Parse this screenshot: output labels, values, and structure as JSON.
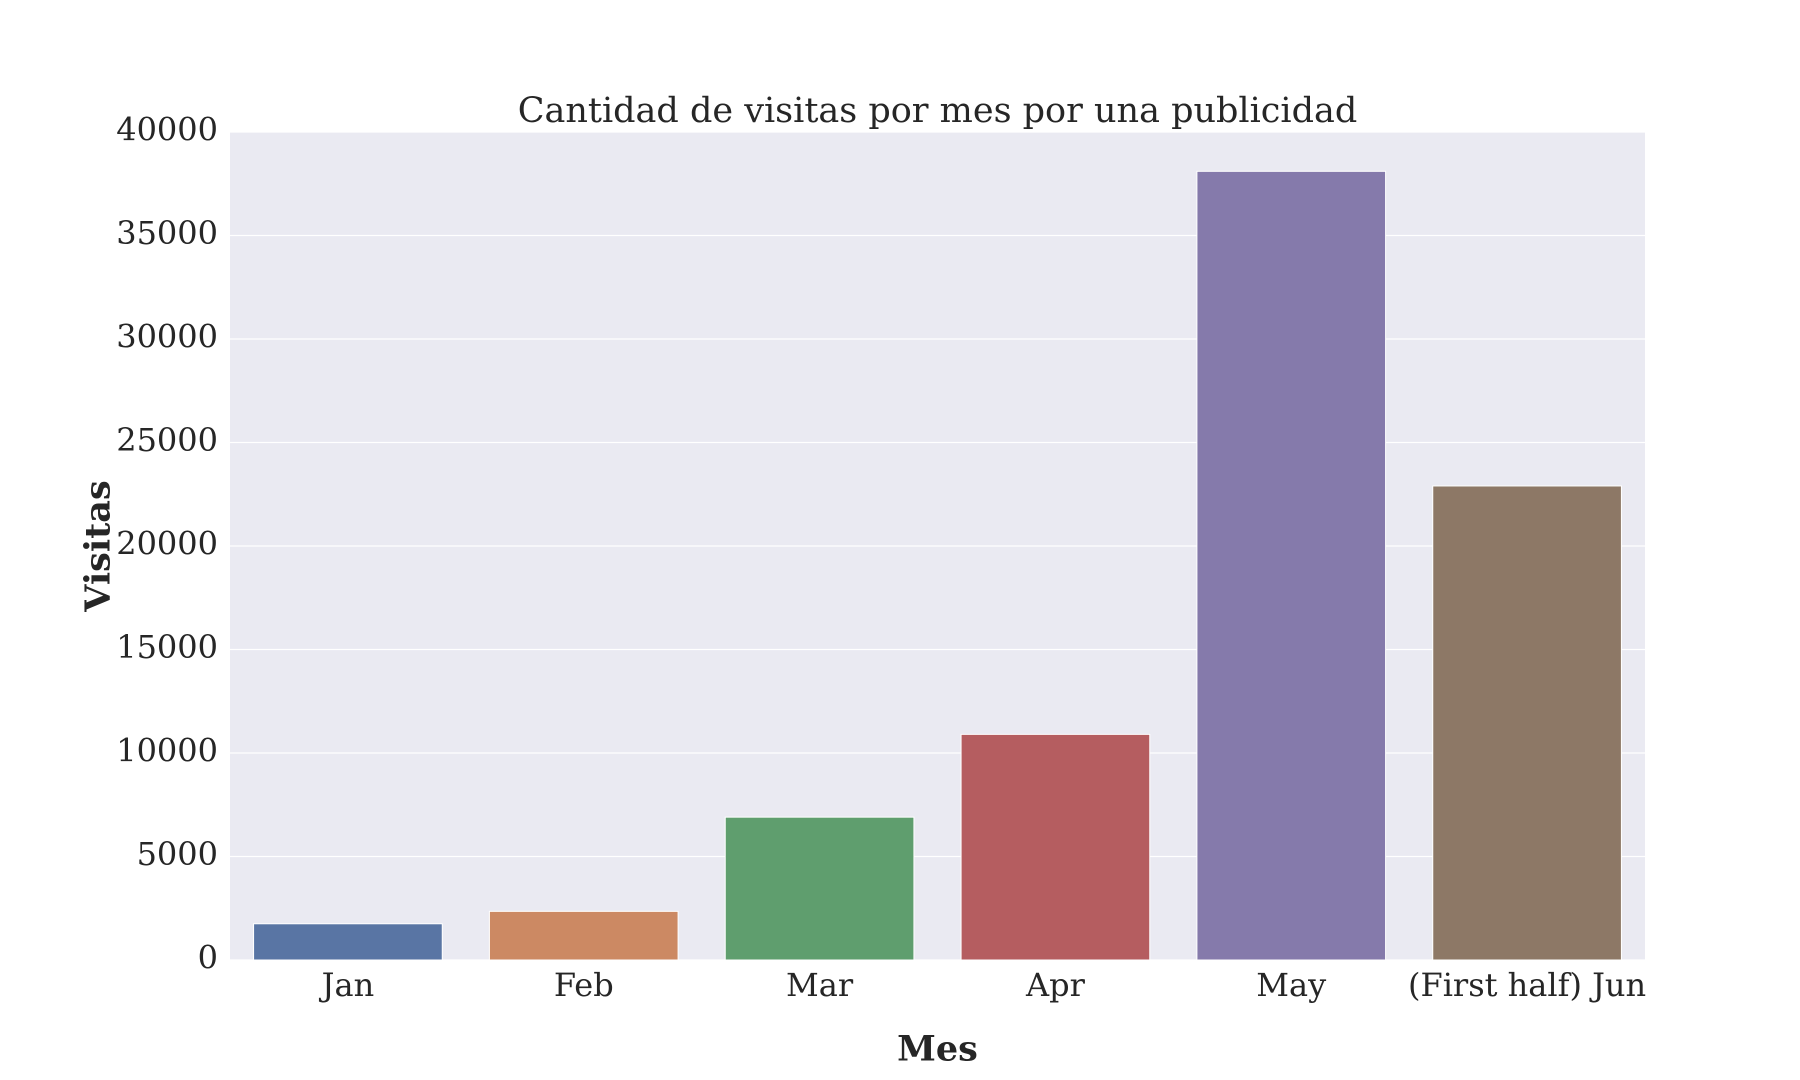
{
  "chart_data": {
    "type": "bar",
    "title": "Cantidad de visitas por mes por una publicidad",
    "xlabel": "Mes",
    "ylabel": "Visitas",
    "categories": [
      "Jan",
      "Feb",
      "Mar",
      "Apr",
      "May",
      "(First half) Jun"
    ],
    "values": [
      1750,
      2350,
      6900,
      10900,
      38100,
      22900
    ],
    "colors": [
      "#5975a4",
      "#cc8963",
      "#5f9e6e",
      "#b55d60",
      "#857aab",
      "#8d7866"
    ],
    "ylim": [
      0,
      40000
    ],
    "yticks": [
      0,
      5000,
      10000,
      15000,
      20000,
      25000,
      30000,
      35000,
      40000
    ],
    "grid": true,
    "background": "#eaeaf2",
    "legend": "none"
  }
}
